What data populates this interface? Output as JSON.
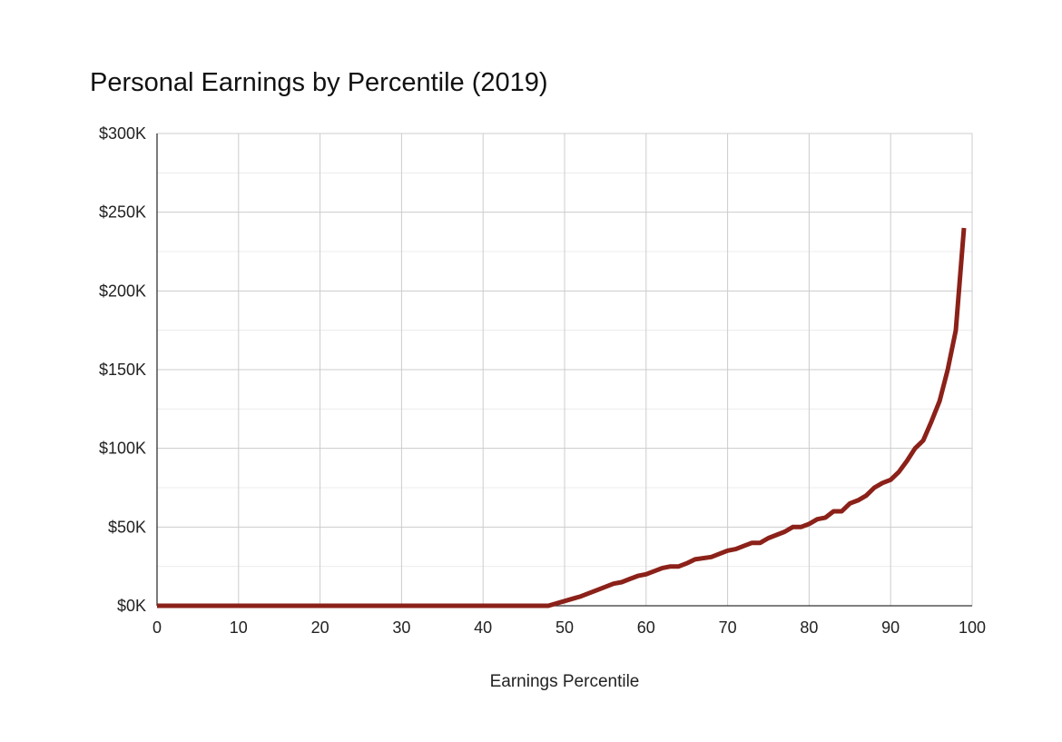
{
  "chart_data": {
    "type": "line",
    "title": "Personal Earnings by Percentile (2019)",
    "xlabel": "Earnings Percentile",
    "ylabel": "",
    "xlim": [
      0,
      100
    ],
    "ylim": [
      0,
      300000
    ],
    "x_ticks": [
      0,
      10,
      20,
      30,
      40,
      50,
      60,
      70,
      80,
      90,
      100
    ],
    "x_tick_labels": [
      "0",
      "10",
      "20",
      "30",
      "40",
      "50",
      "60",
      "70",
      "80",
      "90",
      "100"
    ],
    "y_ticks": [
      0,
      50000,
      100000,
      150000,
      200000,
      250000,
      300000
    ],
    "y_tick_labels": [
      "$0K",
      "$50K",
      "$100K",
      "$150K",
      "$200K",
      "$250K",
      "$300K"
    ],
    "grid": true,
    "legend": "none",
    "line_color": "#8B2119",
    "series": [
      {
        "x": [
          0,
          10,
          20,
          30,
          40,
          48,
          50,
          52,
          54,
          56,
          57,
          58,
          59,
          60,
          62,
          63,
          64,
          65,
          66,
          68,
          70,
          71,
          72,
          73,
          74,
          75,
          76,
          77,
          78,
          79,
          80,
          81,
          82,
          83,
          84,
          85,
          86,
          87,
          88,
          89,
          90,
          91,
          92,
          93,
          94,
          95,
          96,
          97,
          98,
          99
        ],
        "values": [
          0,
          0,
          0,
          0,
          0,
          0,
          3000,
          6000,
          10000,
          14000,
          15000,
          17000,
          19000,
          20000,
          24000,
          25000,
          25000,
          27000,
          29500,
          31000,
          35000,
          36000,
          38000,
          40000,
          40000,
          43000,
          45000,
          47000,
          50000,
          50000,
          52000,
          55000,
          56000,
          60000,
          60000,
          65000,
          67000,
          70000,
          75000,
          78000,
          80000,
          85000,
          92000,
          100000,
          105000,
          117000,
          130000,
          150000,
          175000,
          240000
        ]
      }
    ]
  }
}
